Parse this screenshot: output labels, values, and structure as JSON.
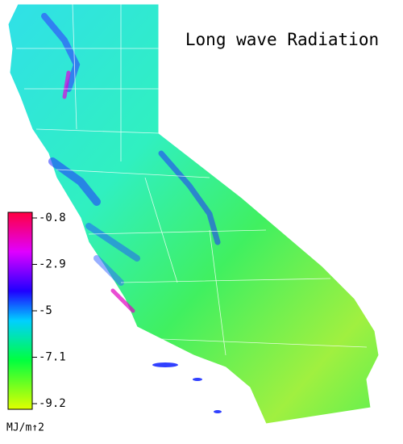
{
  "title": "Long wave Radiation",
  "legend": {
    "ticks": [
      -0.8,
      -2.9,
      -5.0,
      -7.1,
      -9.2
    ],
    "unit": "MJ/m↑2"
  }
}
